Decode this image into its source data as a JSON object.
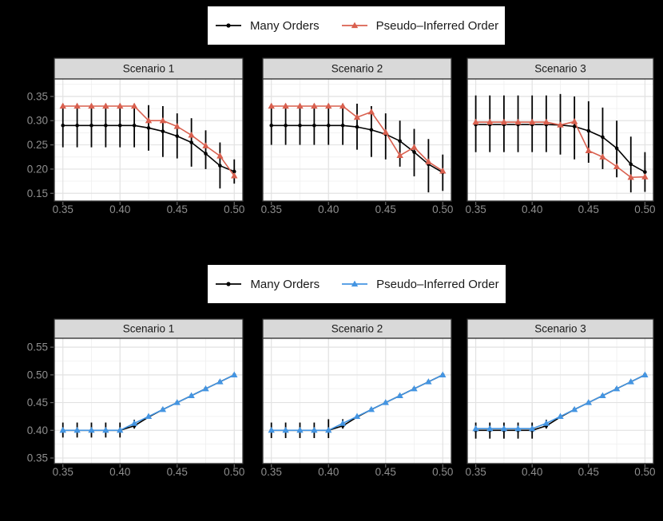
{
  "figure": {
    "background": "#000000",
    "panel_bg": "#FFFFFF",
    "strip_bg": "#D9D9D9",
    "strip_text_color": "#1A1A1A",
    "border_color": "#333333",
    "grid_major": "#E2E2E2",
    "grid_minor": "#F0F0F0",
    "axis_text_color": "#8E8E8E",
    "tick_mark_color": "#666666"
  },
  "chart_data": [
    {
      "type": "line",
      "row": "top",
      "facet_titles": [
        "Scenario 1",
        "Scenario 2",
        "Scenario 3"
      ],
      "x": [
        0.35,
        0.3625,
        0.375,
        0.3875,
        0.4,
        0.4125,
        0.425,
        0.4375,
        0.45,
        0.4625,
        0.475,
        0.4875,
        0.5
      ],
      "x_ticks": [
        0.35,
        0.4,
        0.45,
        0.5
      ],
      "y_ticks": [
        0.15,
        0.2,
        0.25,
        0.3,
        0.35
      ],
      "xlim": [
        0.3425,
        0.5075
      ],
      "ylim": [
        0.134,
        0.386
      ],
      "legend_position": "top",
      "series_defs": [
        {
          "key": "many_orders",
          "label": "Many Orders",
          "color": "#000000",
          "marker": "circle"
        },
        {
          "key": "pseudo_inferred",
          "label": "Pseudo–Inferred Order",
          "color": "#D9604F",
          "marker": "triangle"
        }
      ],
      "panels": [
        {
          "title": "Scenario 1",
          "many_orders": {
            "y": [
              0.29,
              0.29,
              0.29,
              0.29,
              0.29,
              0.29,
              0.285,
              0.278,
              0.268,
              0.255,
              0.232,
              0.207,
              0.195
            ],
            "ymin": [
              0.245,
              0.245,
              0.245,
              0.245,
              0.245,
              0.245,
              0.238,
              0.225,
              0.222,
              0.205,
              0.2,
              0.16,
              0.17
            ],
            "ymax": [
              0.335,
              0.335,
              0.335,
              0.335,
              0.335,
              0.335,
              0.332,
              0.33,
              0.315,
              0.305,
              0.28,
              0.255,
              0.22
            ]
          },
          "pseudo_inferred": {
            "y": [
              0.33,
              0.33,
              0.33,
              0.33,
              0.33,
              0.33,
              0.3,
              0.3,
              0.288,
              0.27,
              0.248,
              0.227,
              0.186
            ]
          }
        },
        {
          "title": "Scenario 2",
          "many_orders": {
            "y": [
              0.29,
              0.29,
              0.29,
              0.29,
              0.29,
              0.29,
              0.287,
              0.281,
              0.272,
              0.258,
              0.235,
              0.21,
              0.193
            ],
            "ymin": [
              0.25,
              0.25,
              0.25,
              0.25,
              0.25,
              0.25,
              0.24,
              0.225,
              0.22,
              0.205,
              0.185,
              0.152,
              0.155
            ],
            "ymax": [
              0.335,
              0.335,
              0.335,
              0.335,
              0.335,
              0.335,
              0.335,
              0.33,
              0.315,
              0.3,
              0.283,
              0.262,
              0.23
            ]
          },
          "pseudo_inferred": {
            "y": [
              0.33,
              0.33,
              0.33,
              0.33,
              0.33,
              0.33,
              0.307,
              0.318,
              0.276,
              0.228,
              0.245,
              0.215,
              0.196
            ]
          }
        },
        {
          "title": "Scenario 3",
          "many_orders": {
            "y": [
              0.292,
              0.292,
              0.292,
              0.292,
              0.292,
              0.292,
              0.291,
              0.288,
              0.279,
              0.266,
              0.243,
              0.21,
              0.194
            ],
            "ymin": [
              0.235,
              0.235,
              0.235,
              0.235,
              0.235,
              0.235,
              0.23,
              0.22,
              0.213,
              0.2,
              0.183,
              0.152,
              0.153
            ],
            "ymax": [
              0.352,
              0.352,
              0.352,
              0.352,
              0.352,
              0.352,
              0.355,
              0.35,
              0.34,
              0.327,
              0.3,
              0.267,
              0.235
            ]
          },
          "pseudo_inferred": {
            "y": [
              0.297,
              0.297,
              0.297,
              0.297,
              0.297,
              0.297,
              0.291,
              0.298,
              0.238,
              0.225,
              0.205,
              0.183,
              0.184
            ]
          }
        }
      ]
    },
    {
      "type": "line",
      "row": "bottom",
      "facet_titles": [
        "Scenario 1",
        "Scenario 2",
        "Scenario 3"
      ],
      "x": [
        0.35,
        0.3625,
        0.375,
        0.3875,
        0.4,
        0.4125,
        0.425,
        0.4375,
        0.45,
        0.4625,
        0.475,
        0.4875,
        0.5
      ],
      "x_ticks": [
        0.35,
        0.4,
        0.45,
        0.5
      ],
      "y_ticks": [
        0.35,
        0.4,
        0.45,
        0.5,
        0.55
      ],
      "xlim": [
        0.3425,
        0.5075
      ],
      "ylim": [
        0.34,
        0.566
      ],
      "legend_position": "top",
      "series_defs": [
        {
          "key": "many_orders",
          "label": "Many Orders",
          "color": "#000000",
          "marker": "circle"
        },
        {
          "key": "pseudo_inferred",
          "label": "Pseudo–Inferred Order",
          "color": "#4495E2",
          "marker": "triangle"
        }
      ],
      "panels": [
        {
          "title": "Scenario 1",
          "many_orders": {
            "y": [
              0.4,
              0.4,
              0.4,
              0.4,
              0.4,
              0.408,
              0.424,
              0.4375,
              0.45,
              0.4625,
              0.475,
              0.4875,
              0.5
            ],
            "ymin": [
              0.387,
              0.387,
              0.387,
              0.387,
              0.387,
              0.403,
              0.424,
              0.4375,
              0.45,
              0.4625,
              0.475,
              0.4875,
              0.5
            ],
            "ymax": [
              0.414,
              0.414,
              0.414,
              0.414,
              0.414,
              0.419,
              0.424,
              0.4375,
              0.45,
              0.4625,
              0.475,
              0.4875,
              0.5
            ]
          },
          "pseudo_inferred": {
            "y": [
              0.4,
              0.4,
              0.4,
              0.4,
              0.4,
              0.4125,
              0.425,
              0.4375,
              0.45,
              0.4625,
              0.475,
              0.4875,
              0.5
            ]
          }
        },
        {
          "title": "Scenario 2",
          "many_orders": {
            "y": [
              0.4,
              0.4,
              0.4,
              0.4,
              0.4,
              0.408,
              0.424,
              0.4375,
              0.45,
              0.4625,
              0.475,
              0.4875,
              0.5
            ],
            "ymin": [
              0.386,
              0.386,
              0.386,
              0.386,
              0.386,
              0.403,
              0.424,
              0.4375,
              0.45,
              0.4625,
              0.475,
              0.4875,
              0.5
            ],
            "ymax": [
              0.414,
              0.414,
              0.414,
              0.414,
              0.42,
              0.42,
              0.424,
              0.4375,
              0.45,
              0.4625,
              0.475,
              0.4875,
              0.5
            ]
          },
          "pseudo_inferred": {
            "y": [
              0.4,
              0.4,
              0.4,
              0.4,
              0.4,
              0.4125,
              0.425,
              0.4375,
              0.45,
              0.4625,
              0.475,
              0.4875,
              0.5
            ]
          }
        },
        {
          "title": "Scenario 3",
          "many_orders": {
            "y": [
              0.4,
              0.4,
              0.4,
              0.4,
              0.4,
              0.408,
              0.424,
              0.4375,
              0.45,
              0.4625,
              0.475,
              0.4875,
              0.5
            ],
            "ymin": [
              0.385,
              0.385,
              0.385,
              0.385,
              0.385,
              0.403,
              0.424,
              0.4375,
              0.45,
              0.4625,
              0.475,
              0.4875,
              0.5
            ],
            "ymax": [
              0.414,
              0.414,
              0.414,
              0.414,
              0.414,
              0.419,
              0.424,
              0.4375,
              0.45,
              0.4625,
              0.475,
              0.4875,
              0.5
            ]
          },
          "pseudo_inferred": {
            "y": [
              0.403,
              0.403,
              0.403,
              0.403,
              0.403,
              0.4125,
              0.425,
              0.4375,
              0.45,
              0.4625,
              0.475,
              0.4875,
              0.5
            ]
          }
        }
      ]
    }
  ]
}
